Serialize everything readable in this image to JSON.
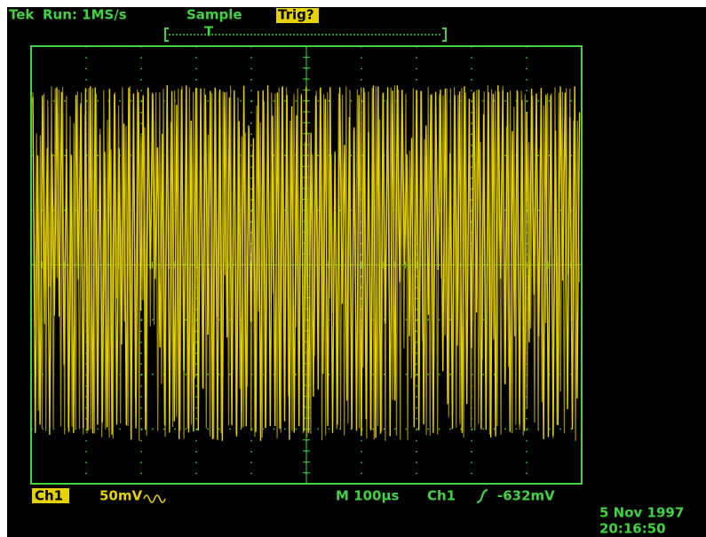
{
  "header": {
    "brand": "Tek",
    "status": "Run: 1MS/s",
    "mode": "Sample",
    "trigger_state": "Trig?"
  },
  "trigger_marker": "T",
  "footer": {
    "channel": "Ch1",
    "scale": "50mV",
    "timebase": "M 100µs",
    "trigger_source": "Ch1",
    "trigger_level": "-632mV",
    "date": "5 Nov 1997",
    "time": "20:16:50"
  }
}
